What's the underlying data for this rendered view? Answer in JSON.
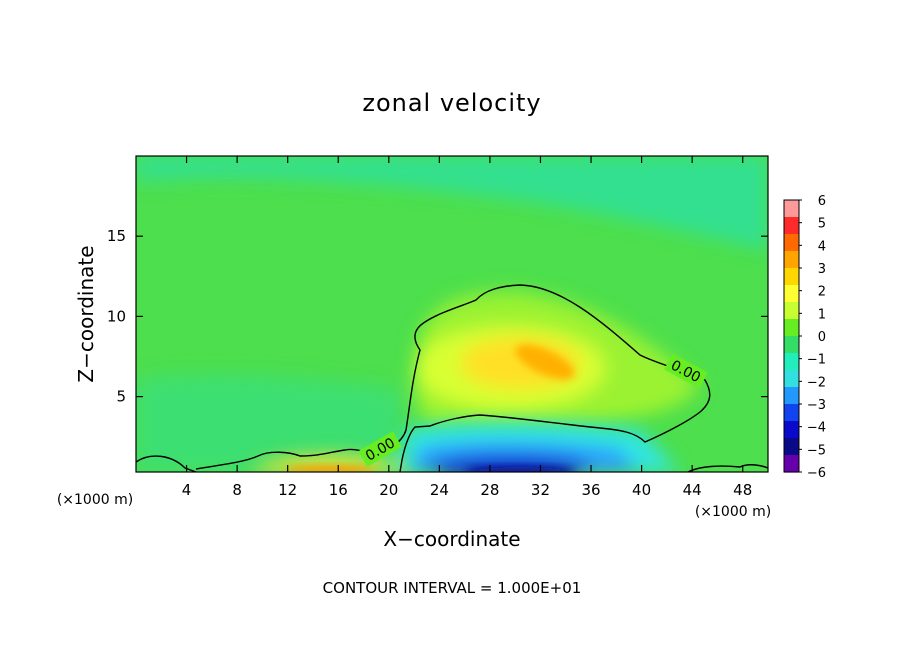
{
  "chart_data": {
    "type": "heatmap",
    "title": "zonal velocity",
    "xlabel": "X−coordinate",
    "ylabel": "Z−coordinate",
    "x_unit_left": "(×1000 m)",
    "x_unit_right": "(×1000 m)",
    "xlim": [
      0,
      50
    ],
    "ylim": [
      0.3,
      20
    ],
    "x_ticks": [
      "4",
      "8",
      "12",
      "16",
      "20",
      "24",
      "28",
      "32",
      "36",
      "40",
      "44",
      "48"
    ],
    "x_tick_values": [
      4,
      8,
      12,
      16,
      20,
      24,
      28,
      32,
      36,
      40,
      44,
      48
    ],
    "y_ticks": [
      "5",
      "10",
      "15"
    ],
    "y_tick_values": [
      5,
      10,
      15
    ],
    "colorbar": {
      "labels": [
        "6",
        "5",
        "4",
        "3",
        "2",
        "1",
        "0",
        "−1",
        "−2",
        "−3",
        "−4",
        "−5",
        "−6"
      ],
      "values": [
        6,
        5,
        4,
        3,
        2,
        1,
        0,
        -1,
        -2,
        -3,
        -4,
        -5,
        -6
      ],
      "colors": [
        "#ff9a9a",
        "#ff2b2b",
        "#ff6a00",
        "#ffa500",
        "#ffd700",
        "#ffff33",
        "#c8ff33",
        "#66ee22",
        "#33dd66",
        "#22eebb",
        "#33e0e0",
        "#2299ff",
        "#1144ee",
        "#0a0acc",
        "#0a0a88",
        "#6600aa"
      ]
    },
    "contour_labels": [
      "0.00",
      "0.00"
    ],
    "contour_level": 0.0,
    "features": [
      {
        "name": "positive core",
        "x": 32,
        "z": 7.5,
        "value": 3.0
      },
      {
        "name": "near-surface negative jet",
        "x": 31,
        "z": 0.6,
        "value": -5.5
      },
      {
        "name": "near-surface positive",
        "x": 17,
        "z": 0.4,
        "value": 3.0
      }
    ],
    "note": "CONTOUR INTERVAL = 1.000E+01"
  }
}
